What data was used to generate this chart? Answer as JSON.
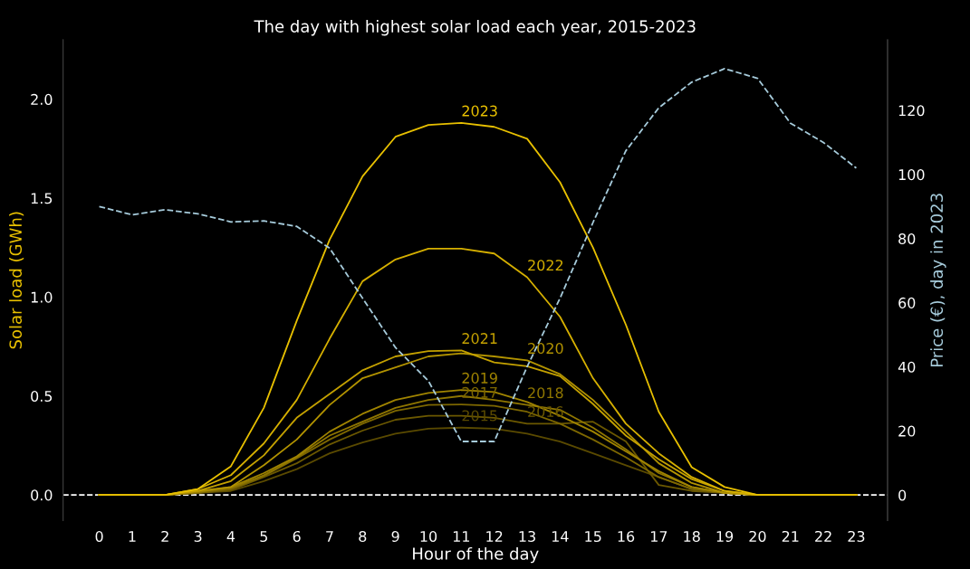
{
  "chart_data": {
    "type": "line",
    "title": "The day with highest solar load each year, 2015-2023",
    "xlabel": "Hour of the day",
    "ylabel": "Solar load (GWh)",
    "y2label": "Price (€), day in 2023",
    "categories": [
      "0",
      "1",
      "2",
      "3",
      "4",
      "5",
      "6",
      "7",
      "8",
      "9",
      "10",
      "11",
      "12",
      "13",
      "14",
      "15",
      "16",
      "17",
      "18",
      "19",
      "20",
      "21",
      "22",
      "23"
    ],
    "ylim": [
      -0.13,
      2.3
    ],
    "yticks": [
      {
        "value": 0,
        "label": "0.0"
      },
      0.5,
      {
        "value": 1,
        "label": "1.0"
      },
      1.5,
      {
        "value": 2,
        "label": "2.0"
      }
    ],
    "y2lim": [
      -8,
      142
    ],
    "y2ticks": [
      0,
      20,
      40,
      60,
      80,
      100,
      120
    ],
    "grid": false,
    "legend": false,
    "line_style": "solid",
    "marker": "none",
    "ref_lines": [
      {
        "axis": "y",
        "value": 0,
        "color": "#ffffff",
        "line_style": "dashed"
      }
    ],
    "series": [
      {
        "name": "2015",
        "color": "#5a4a00",
        "values": [
          0,
          0,
          0,
          0.01,
          0.02,
          0.07,
          0.13,
          0.21,
          0.265,
          0.31,
          0.335,
          0.34,
          0.335,
          0.31,
          0.27,
          0.21,
          0.15,
          0.09,
          0.03,
          0.01,
          0,
          0,
          0,
          0
        ]
      },
      {
        "name": "2016",
        "color": "#6b5800",
        "values": [
          0,
          0,
          0,
          0.01,
          0.025,
          0.09,
          0.16,
          0.255,
          0.325,
          0.38,
          0.4,
          0.4,
          0.39,
          0.36,
          0.36,
          0.37,
          0.27,
          0.05,
          0.02,
          0.01,
          0,
          0,
          0,
          0
        ]
      },
      {
        "name": "2017",
        "color": "#7d6700",
        "values": [
          0,
          0,
          0,
          0.01,
          0.03,
          0.095,
          0.185,
          0.28,
          0.36,
          0.425,
          0.455,
          0.457,
          0.45,
          0.42,
          0.36,
          0.28,
          0.19,
          0.09,
          0.03,
          0.01,
          0,
          0,
          0,
          0
        ]
      },
      {
        "name": "2018",
        "color": "#8f7600",
        "values": [
          0,
          0,
          0,
          0.015,
          0.035,
          0.1,
          0.19,
          0.3,
          0.37,
          0.44,
          0.48,
          0.5,
          0.48,
          0.455,
          0.43,
          0.34,
          0.23,
          0.11,
          0.04,
          0.01,
          0,
          0,
          0,
          0
        ]
      },
      {
        "name": "2019",
        "color": "#a08400",
        "values": [
          0,
          0,
          0,
          0.015,
          0.04,
          0.11,
          0.195,
          0.32,
          0.41,
          0.48,
          0.515,
          0.53,
          0.52,
          0.47,
          0.4,
          0.32,
          0.22,
          0.12,
          0.04,
          0.01,
          0,
          0,
          0,
          0
        ]
      },
      {
        "name": "2020",
        "color": "#b29300",
        "values": [
          0,
          0,
          0,
          0.02,
          0.04,
          0.15,
          0.28,
          0.455,
          0.59,
          0.645,
          0.7,
          0.715,
          0.7,
          0.68,
          0.61,
          0.48,
          0.32,
          0.16,
          0.06,
          0.01,
          0,
          0,
          0,
          0
        ]
      },
      {
        "name": "2021",
        "color": "#c4a100",
        "values": [
          0,
          0,
          0,
          0.02,
          0.07,
          0.2,
          0.39,
          0.51,
          0.63,
          0.7,
          0.727,
          0.73,
          0.67,
          0.65,
          0.6,
          0.46,
          0.3,
          0.18,
          0.08,
          0.02,
          0,
          0,
          0,
          0
        ]
      },
      {
        "name": "2022",
        "color": "#d6b000",
        "values": [
          0,
          0,
          0,
          0.03,
          0.1,
          0.26,
          0.48,
          0.79,
          1.08,
          1.19,
          1.245,
          1.245,
          1.22,
          1.1,
          0.9,
          0.59,
          0.36,
          0.21,
          0.09,
          0.02,
          0,
          0,
          0,
          0
        ]
      },
      {
        "name": "2023",
        "color": "#e8c000",
        "values": [
          0,
          0,
          0,
          0.03,
          0.145,
          0.44,
          0.88,
          1.29,
          1.61,
          1.81,
          1.87,
          1.88,
          1.86,
          1.8,
          1.58,
          1.25,
          0.86,
          0.42,
          0.14,
          0.04,
          0,
          0,
          0,
          0
        ]
      },
      {
        "axis": "y2",
        "color": "#a6cbdb",
        "line_style": "dashed",
        "values": [
          90,
          87.4,
          89,
          87.7,
          85.2,
          85.5,
          83.8,
          77,
          61.4,
          46,
          35.6,
          16.7,
          16.7,
          40,
          61.4,
          85,
          107.4,
          120.8,
          128.8,
          133,
          130,
          116,
          110,
          102
        ]
      }
    ]
  }
}
